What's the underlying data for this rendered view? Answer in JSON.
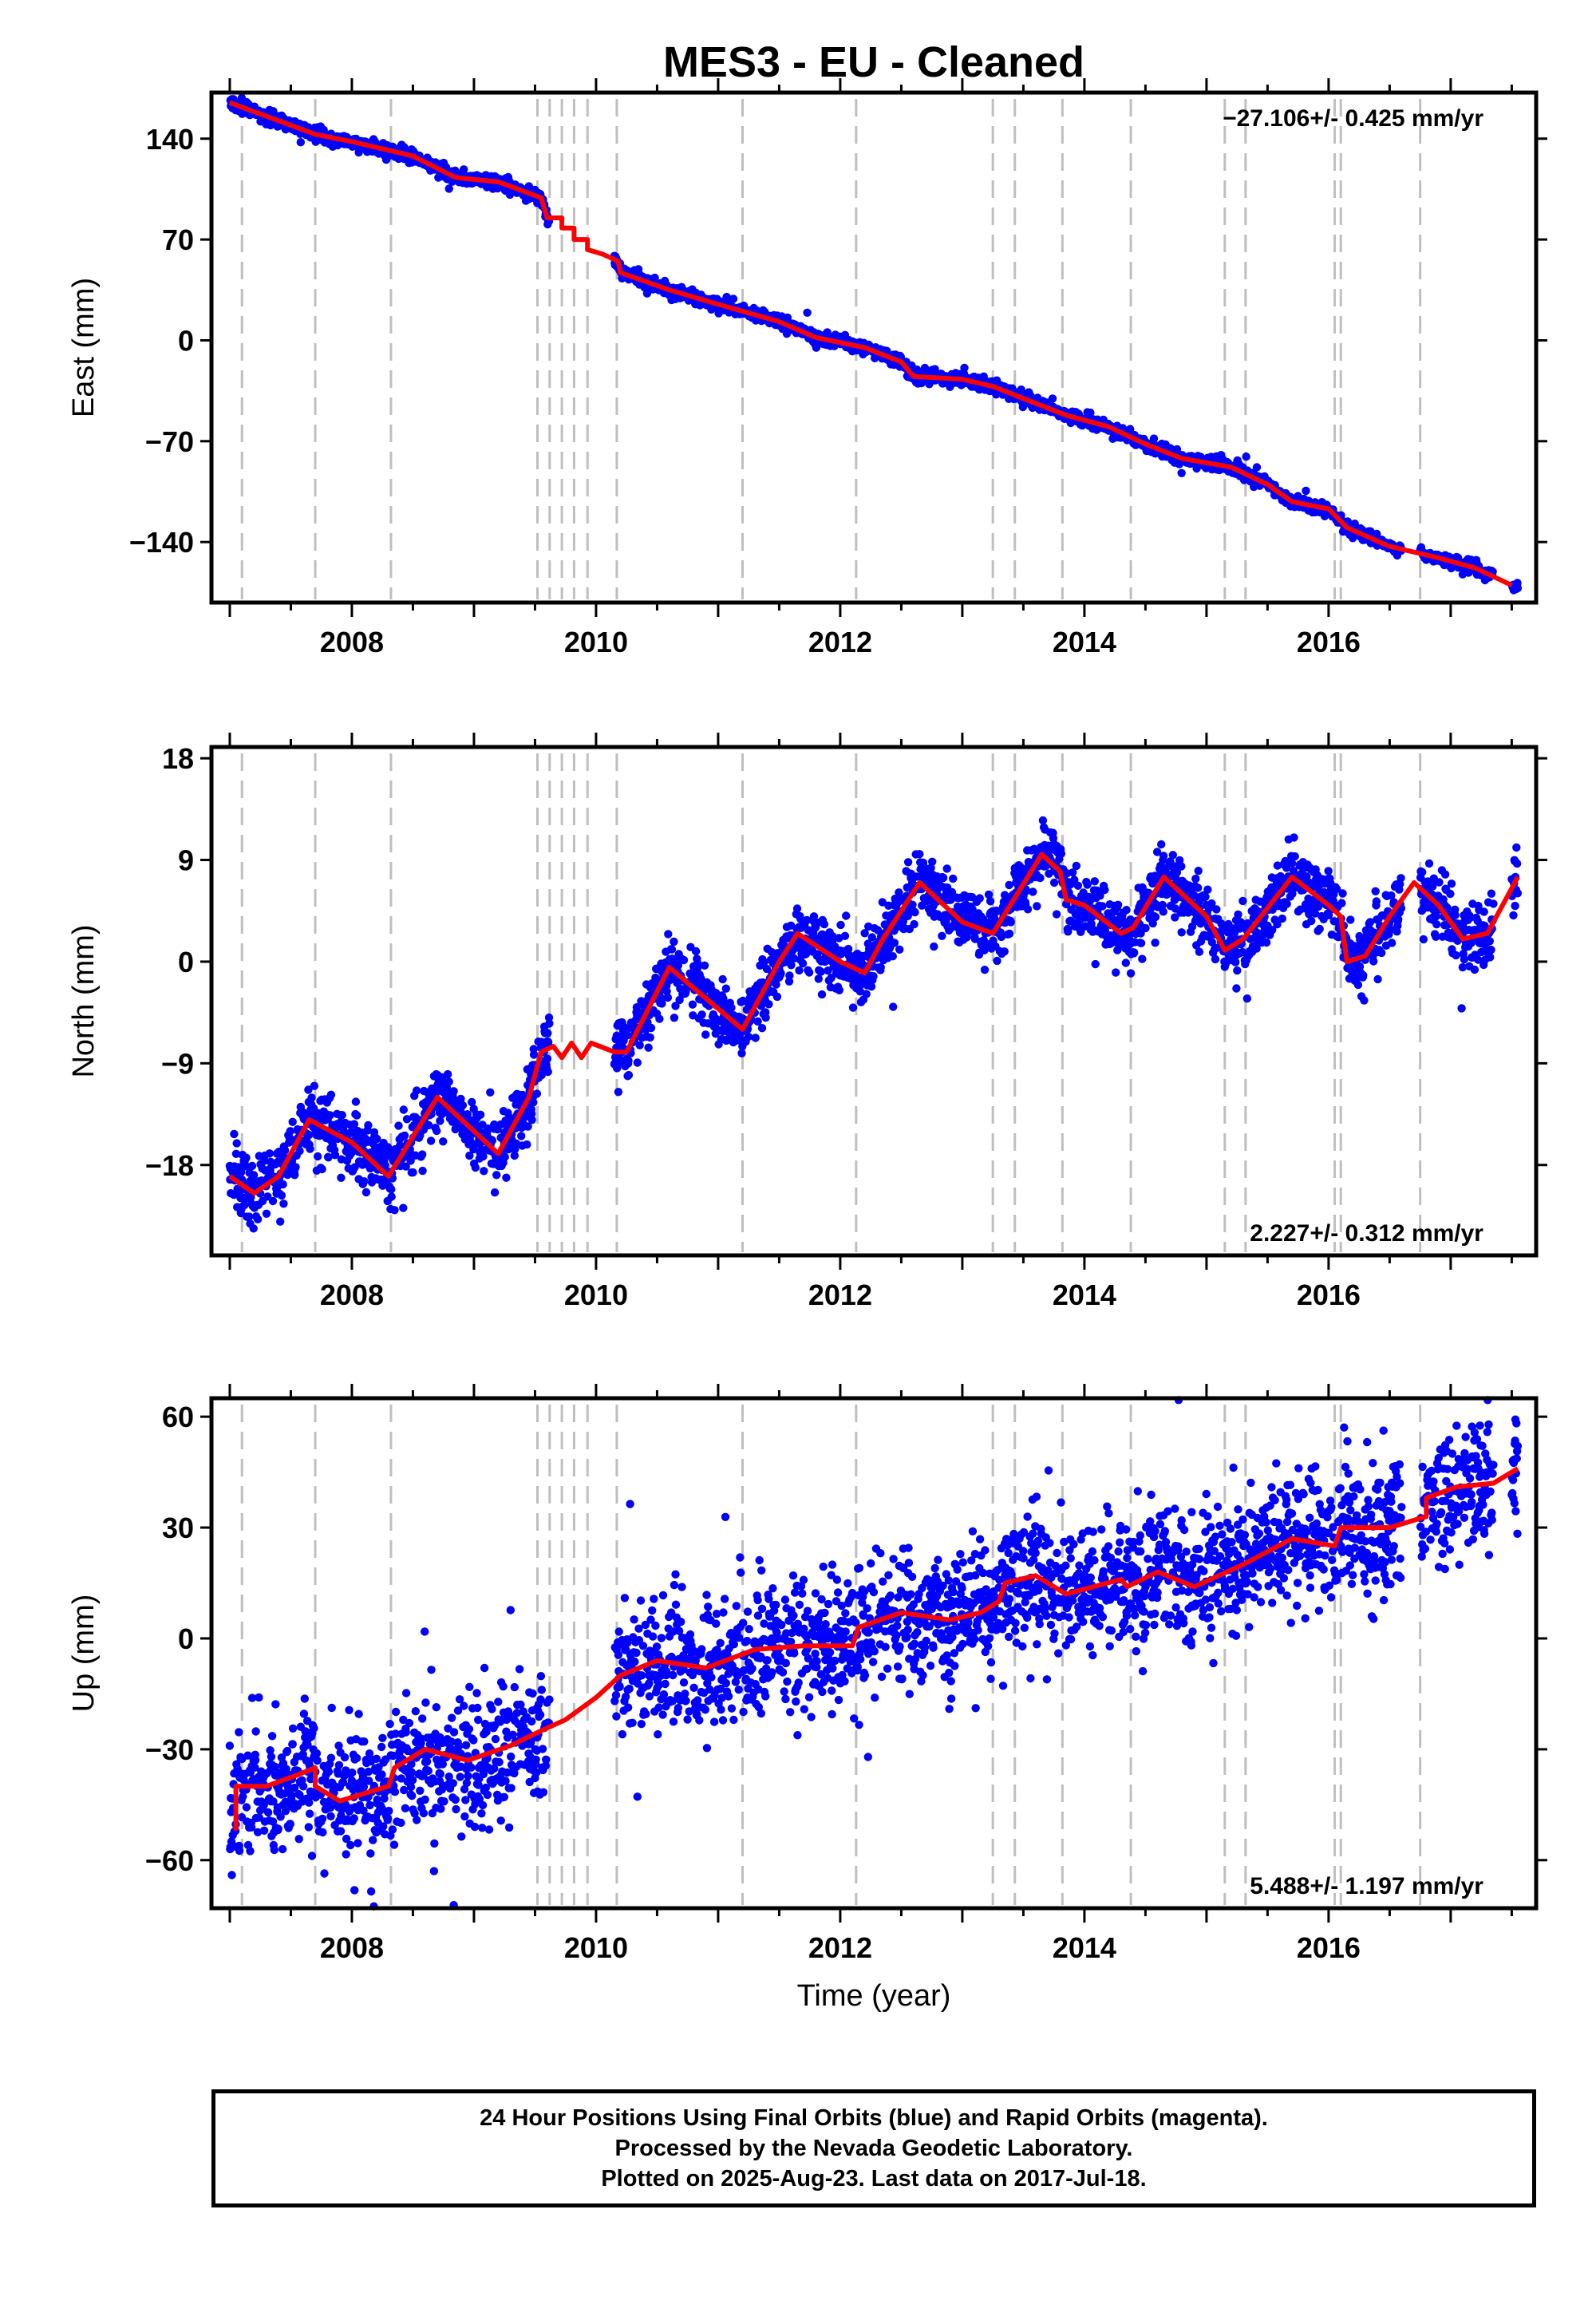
{
  "title": "MES3  - EU - Cleaned",
  "colors": {
    "points": "#0000ff",
    "model": "#ff0000",
    "breaks": "#bfbfbf",
    "frame": "#000000"
  },
  "chart_data": [
    {
      "type": "scatter",
      "component": "East",
      "ylabel": "East (mm)",
      "xlabel": "",
      "xlim": [
        2006.85,
        2017.7
      ],
      "ylim": [
        -182,
        172
      ],
      "yticks": [
        140,
        70,
        0,
        -70,
        -140
      ],
      "xticks": [
        2008,
        2010,
        2012,
        2014,
        2016
      ],
      "rate_label": "-27.106+/- 0.425 mm/yr",
      "rate_position": "top-right",
      "model": [
        [
          2007.0,
          165
        ],
        [
          2007.7,
          143
        ],
        [
          2008.0,
          138
        ],
        [
          2008.5,
          128
        ],
        [
          2008.85,
          113
        ],
        [
          2009.2,
          110
        ],
        [
          2009.55,
          99
        ],
        [
          2009.6,
          85
        ],
        [
          2009.72,
          85
        ],
        [
          2009.72,
          78
        ],
        [
          2009.82,
          78
        ],
        [
          2009.82,
          70
        ],
        [
          2009.93,
          70
        ],
        [
          2009.93,
          63
        ],
        [
          2010.05,
          60
        ],
        [
          2010.18,
          55
        ],
        [
          2010.2,
          47
        ],
        [
          2010.6,
          35
        ],
        [
          2011.0,
          25
        ],
        [
          2011.5,
          13
        ],
        [
          2011.8,
          2
        ],
        [
          2012.2,
          -5
        ],
        [
          2012.5,
          -15
        ],
        [
          2012.6,
          -25
        ],
        [
          2013.0,
          -27
        ],
        [
          2013.25,
          -32
        ],
        [
          2013.55,
          -42
        ],
        [
          2013.85,
          -52
        ],
        [
          2014.2,
          -60
        ],
        [
          2014.5,
          -72
        ],
        [
          2014.8,
          -82
        ],
        [
          2015.2,
          -88
        ],
        [
          2015.5,
          -100
        ],
        [
          2015.7,
          -112
        ],
        [
          2016.0,
          -117
        ],
        [
          2016.15,
          -130
        ],
        [
          2016.5,
          -143
        ],
        [
          2016.9,
          -151
        ],
        [
          2017.2,
          -158
        ],
        [
          2017.5,
          -170
        ]
      ],
      "data_segments": [
        [
          2007.0,
          2009.62
        ],
        [
          2010.15,
          2016.6
        ],
        [
          2016.75,
          2017.35
        ],
        [
          2017.5,
          2017.55
        ]
      ]
    },
    {
      "type": "scatter",
      "component": "North",
      "ylabel": "North (mm)",
      "xlabel": "",
      "xlim": [
        2006.85,
        2017.7
      ],
      "ylim": [
        -26,
        19
      ],
      "yticks": [
        18,
        9,
        0,
        -9,
        -18
      ],
      "xticks": [
        2008,
        2010,
        2012,
        2014,
        2016
      ],
      "rate_label": "2.227+/- 0.312 mm/yr",
      "rate_position": "bottom-right",
      "model": [
        [
          2007.0,
          -19
        ],
        [
          2007.2,
          -20.5
        ],
        [
          2007.4,
          -19
        ],
        [
          2007.65,
          -14
        ],
        [
          2008.0,
          -16
        ],
        [
          2008.3,
          -19
        ],
        [
          2008.7,
          -12
        ],
        [
          2009.2,
          -17
        ],
        [
          2009.45,
          -12
        ],
        [
          2009.55,
          -8
        ],
        [
          2009.65,
          -7.5
        ],
        [
          2009.72,
          -8.5
        ],
        [
          2009.8,
          -7.2
        ],
        [
          2009.88,
          -8.5
        ],
        [
          2009.96,
          -7.2
        ],
        [
          2010.15,
          -8
        ],
        [
          2010.25,
          -8
        ],
        [
          2010.6,
          -0.5
        ],
        [
          2011.2,
          -6
        ],
        [
          2011.5,
          0
        ],
        [
          2011.65,
          2.5
        ],
        [
          2012.0,
          0
        ],
        [
          2012.2,
          -1
        ],
        [
          2012.35,
          2
        ],
        [
          2012.65,
          7
        ],
        [
          2013.0,
          3.5
        ],
        [
          2013.25,
          2.5
        ],
        [
          2013.65,
          9.5
        ],
        [
          2013.8,
          8
        ],
        [
          2013.85,
          5.5
        ],
        [
          2014.0,
          5
        ],
        [
          2014.3,
          2.5
        ],
        [
          2014.4,
          3
        ],
        [
          2014.65,
          7.5
        ],
        [
          2015.0,
          4
        ],
        [
          2015.15,
          1
        ],
        [
          2015.3,
          2
        ],
        [
          2015.7,
          7.5
        ],
        [
          2016.0,
          5
        ],
        [
          2016.1,
          4
        ],
        [
          2016.15,
          0
        ],
        [
          2016.3,
          0.5
        ],
        [
          2016.5,
          4
        ],
        [
          2016.7,
          7
        ],
        [
          2016.9,
          5
        ],
        [
          2017.1,
          2
        ],
        [
          2017.3,
          2.5
        ],
        [
          2017.55,
          7.5
        ]
      ],
      "data_segments": [
        [
          2007.0,
          2009.62
        ],
        [
          2010.15,
          2016.6
        ],
        [
          2016.75,
          2017.35
        ],
        [
          2017.5,
          2017.55
        ]
      ]
    },
    {
      "type": "scatter",
      "component": "Up",
      "ylabel": "Up (mm)",
      "xlabel": "Time (year)",
      "xlim": [
        2006.85,
        2017.7
      ],
      "ylim": [
        -73,
        65
      ],
      "yticks": [
        60,
        30,
        0,
        -30,
        -60
      ],
      "xticks": [
        2008,
        2010,
        2012,
        2014,
        2016
      ],
      "rate_label": "5.488+/- 1.197 mm/yr",
      "rate_position": "bottom-right",
      "model": [
        [
          2007.05,
          -52
        ],
        [
          2007.05,
          -40
        ],
        [
          2007.3,
          -40
        ],
        [
          2007.55,
          -37
        ],
        [
          2007.7,
          -35
        ],
        [
          2007.7,
          -40
        ],
        [
          2007.9,
          -44
        ],
        [
          2008.2,
          -41
        ],
        [
          2008.3,
          -40
        ],
        [
          2008.35,
          -35
        ],
        [
          2008.6,
          -30
        ],
        [
          2008.95,
          -33
        ],
        [
          2009.3,
          -29
        ],
        [
          2009.55,
          -25
        ],
        [
          2009.75,
          -22
        ],
        [
          2010.0,
          -16
        ],
        [
          2010.2,
          -10
        ],
        [
          2010.5,
          -6
        ],
        [
          2010.9,
          -8
        ],
        [
          2011.3,
          -3
        ],
        [
          2011.7,
          -2
        ],
        [
          2012.1,
          -2
        ],
        [
          2012.15,
          3
        ],
        [
          2012.5,
          7
        ],
        [
          2012.9,
          5
        ],
        [
          2013.15,
          7
        ],
        [
          2013.3,
          10
        ],
        [
          2013.35,
          15
        ],
        [
          2013.6,
          17
        ],
        [
          2013.85,
          12
        ],
        [
          2014.3,
          16
        ],
        [
          2014.35,
          14
        ],
        [
          2014.6,
          18
        ],
        [
          2014.9,
          14
        ],
        [
          2015.3,
          20
        ],
        [
          2015.7,
          27
        ],
        [
          2016.05,
          25
        ],
        [
          2016.1,
          30
        ],
        [
          2016.5,
          30
        ],
        [
          2016.8,
          33
        ],
        [
          2016.8,
          38
        ],
        [
          2017.05,
          41
        ],
        [
          2017.35,
          42
        ],
        [
          2017.55,
          46
        ]
      ],
      "data_segments": [
        [
          2007.0,
          2009.62
        ],
        [
          2010.15,
          2016.6
        ],
        [
          2016.75,
          2017.35
        ],
        [
          2017.5,
          2017.55
        ]
      ]
    }
  ],
  "equipment_breaks": [
    2007.1,
    2007.7,
    2008.32,
    2009.52,
    2009.62,
    2009.72,
    2009.82,
    2009.93,
    2010.17,
    2011.2,
    2012.13,
    2013.25,
    2013.43,
    2013.82,
    2014.38,
    2015.15,
    2015.32,
    2016.05,
    2016.1,
    2016.75
  ],
  "footer": {
    "line1": "24 Hour Positions Using Final Orbits (blue) and Rapid Orbits (magenta).",
    "line2": "Processed by the Nevada Geodetic Laboratory.",
    "line3": "Plotted on 2025-Aug-23. Last data on 2017-Jul-18."
  }
}
